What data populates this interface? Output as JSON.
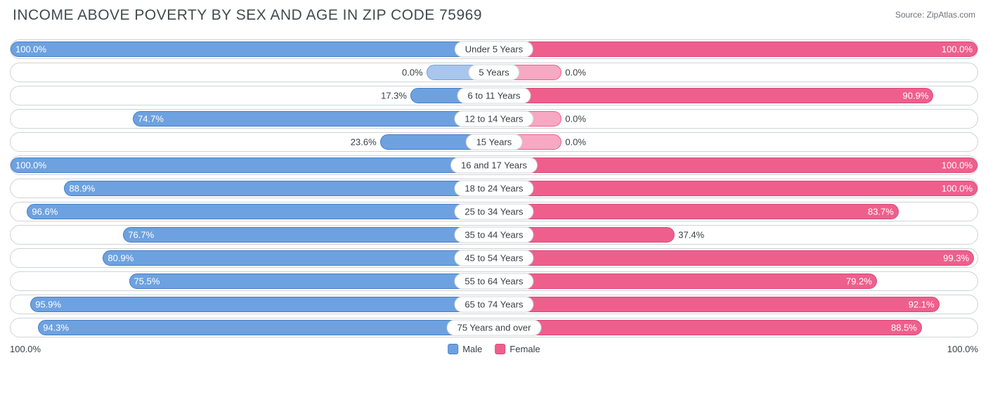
{
  "title": "INCOME ABOVE POVERTY BY SEX AND AGE IN ZIP CODE 75969",
  "source": "Source: ZipAtlas.com",
  "axis": {
    "left": "100.0%",
    "right": "100.0%"
  },
  "legend": {
    "male": "Male",
    "female": "Female"
  },
  "colors": {
    "male_fill": "#6da1e0",
    "male_border": "#4a7fc4",
    "female_fill": "#ef5f8d",
    "female_border": "#d9487a",
    "row_border": "#cfd3d6",
    "text": "#3a3f43",
    "zero_male": "#a9c6ec",
    "zero_female": "#f7a8c2"
  },
  "min_bar_pct": 14,
  "rows": [
    {
      "category": "Under 5 Years",
      "male": 100.0,
      "female": 100.0,
      "male_label": "100.0%",
      "female_label": "100.0%"
    },
    {
      "category": "5 Years",
      "male": 0.0,
      "female": 0.0,
      "male_label": "0.0%",
      "female_label": "0.0%",
      "zero": true
    },
    {
      "category": "6 to 11 Years",
      "male": 17.3,
      "female": 90.9,
      "male_label": "17.3%",
      "female_label": "90.9%"
    },
    {
      "category": "12 to 14 Years",
      "male": 74.7,
      "female": 0.0,
      "male_label": "74.7%",
      "female_label": "0.0%",
      "female_zero": true
    },
    {
      "category": "15 Years",
      "male": 23.6,
      "female": 0.0,
      "male_label": "23.6%",
      "female_label": "0.0%",
      "female_zero": true
    },
    {
      "category": "16 and 17 Years",
      "male": 100.0,
      "female": 100.0,
      "male_label": "100.0%",
      "female_label": "100.0%"
    },
    {
      "category": "18 to 24 Years",
      "male": 88.9,
      "female": 100.0,
      "male_label": "88.9%",
      "female_label": "100.0%"
    },
    {
      "category": "25 to 34 Years",
      "male": 96.6,
      "female": 83.7,
      "male_label": "96.6%",
      "female_label": "83.7%"
    },
    {
      "category": "35 to 44 Years",
      "male": 76.7,
      "female": 37.4,
      "male_label": "76.7%",
      "female_label": "37.4%"
    },
    {
      "category": "45 to 54 Years",
      "male": 80.9,
      "female": 99.3,
      "male_label": "80.9%",
      "female_label": "99.3%"
    },
    {
      "category": "55 to 64 Years",
      "male": 75.5,
      "female": 79.2,
      "male_label": "75.5%",
      "female_label": "79.2%"
    },
    {
      "category": "65 to 74 Years",
      "male": 95.9,
      "female": 92.1,
      "male_label": "95.9%",
      "female_label": "92.1%"
    },
    {
      "category": "75 Years and over",
      "male": 94.3,
      "female": 88.5,
      "male_label": "94.3%",
      "female_label": "88.5%"
    }
  ]
}
